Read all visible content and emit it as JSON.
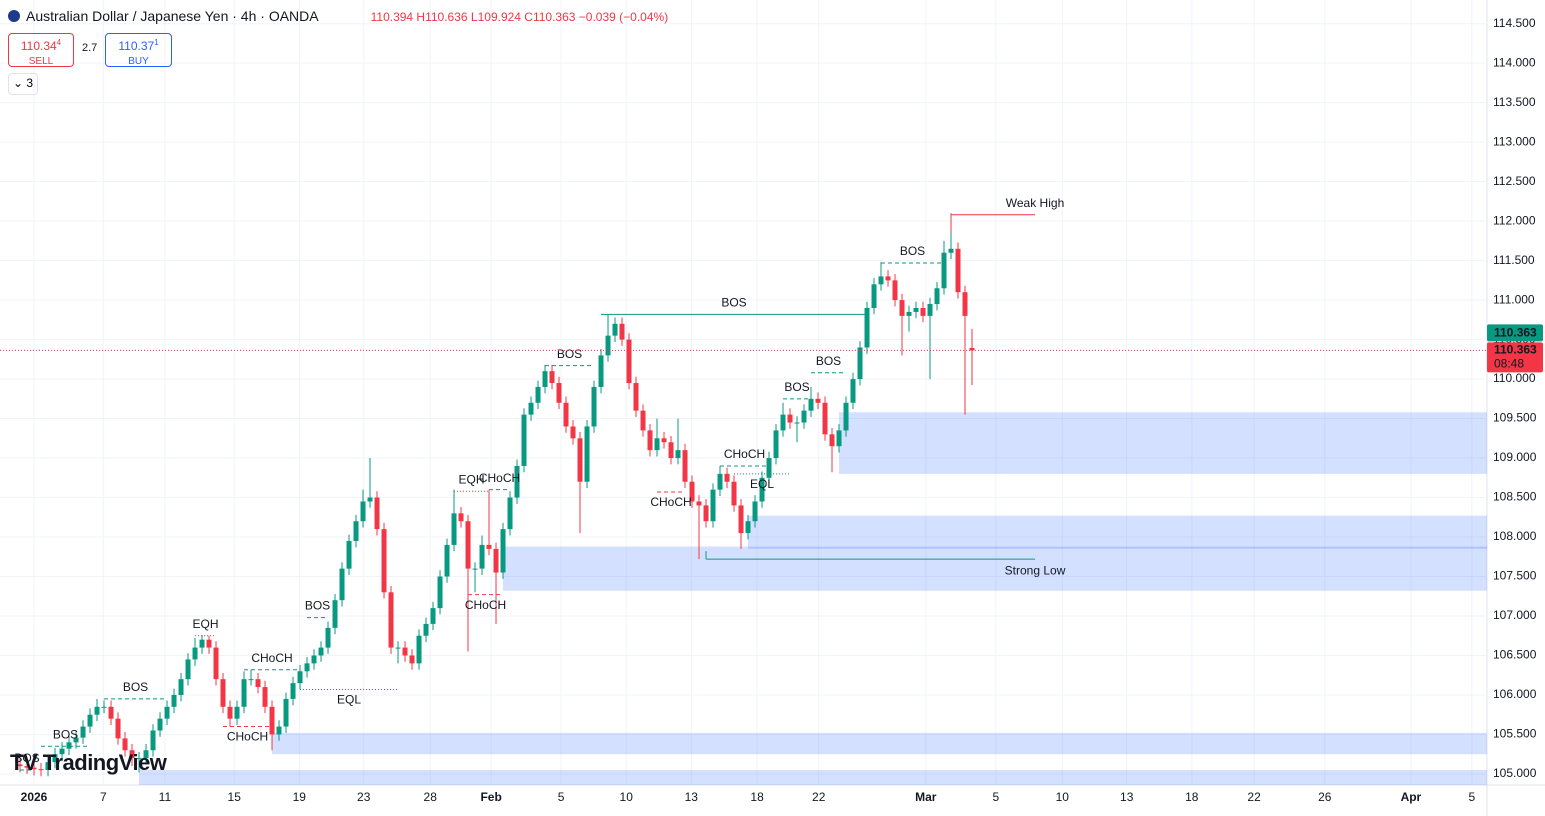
{
  "header": {
    "symbol": "Australian Dollar / Japanese Yen · 4h · OANDA",
    "ohlc": "110.394 H110.636 L109.924 C110.363 −0.039 (−0.04%)",
    "sell": {
      "price": "110.34",
      "pip": "4",
      "label": "SELL"
    },
    "spread": "2.7",
    "buy": {
      "price": "110.37",
      "pip": "1",
      "label": "BUY"
    },
    "indicators": "3",
    "logo": "TradingView"
  },
  "chart_data": {
    "type": "candlestick",
    "up_color": "#089981",
    "down_color": "#f23645",
    "grid": true,
    "ylim": [
      104.86,
      114.8
    ],
    "yticks": [
      {
        "value": 105,
        "label": "105.000"
      },
      {
        "value": 105.5,
        "label": "105.500"
      },
      {
        "value": 106,
        "label": "106.000"
      },
      {
        "value": 106.5,
        "label": "106.500"
      },
      {
        "value": 107,
        "label": "107.000"
      },
      {
        "value": 107.5,
        "label": "107.500"
      },
      {
        "value": 108,
        "label": "108.000"
      },
      {
        "value": 108.5,
        "label": "108.500"
      },
      {
        "value": 109,
        "label": "109.000"
      },
      {
        "value": 109.5,
        "label": "109.500"
      },
      {
        "value": 110,
        "label": "110.000"
      },
      {
        "value": 110.5,
        "label": "110.500"
      },
      {
        "value": 111,
        "label": "111.000"
      },
      {
        "value": 111.5,
        "label": "111.500"
      },
      {
        "value": 112,
        "label": "112.000"
      },
      {
        "value": 112.5,
        "label": "112.500"
      },
      {
        "value": 113,
        "label": "113.000"
      },
      {
        "value": 113.5,
        "label": "113.500"
      },
      {
        "value": 114,
        "label": "114.000"
      },
      {
        "value": 114.5,
        "label": "114.500"
      }
    ],
    "xlim": [
      -2.86,
      209.57
    ],
    "xticks": [
      {
        "value": 2,
        "label": "2026"
      },
      {
        "value": 11.9,
        "label": "7"
      },
      {
        "value": 20.7,
        "label": "11"
      },
      {
        "value": 30.6,
        "label": "15"
      },
      {
        "value": 39.9,
        "label": "19"
      },
      {
        "value": 49.1,
        "label": "23"
      },
      {
        "value": 58.6,
        "label": "28"
      },
      {
        "value": 67.3,
        "label": "Feb"
      },
      {
        "value": 77.3,
        "label": "5"
      },
      {
        "value": 86.6,
        "label": "10"
      },
      {
        "value": 95.9,
        "label": "13"
      },
      {
        "value": 105.3,
        "label": "18"
      },
      {
        "value": 114.1,
        "label": "22"
      },
      {
        "value": 129.4,
        "label": "Mar"
      },
      {
        "value": 139.4,
        "label": "5"
      },
      {
        "value": 148.9,
        "label": "10"
      },
      {
        "value": 158.1,
        "label": "13"
      },
      {
        "value": 167.4,
        "label": "18"
      },
      {
        "value": 176.3,
        "label": "22"
      },
      {
        "value": 186.4,
        "label": "26"
      },
      {
        "value": 198.7,
        "label": "Apr"
      },
      {
        "value": 207.4,
        "label": "5"
      }
    ],
    "open": [
      105.12,
      105.1,
      105.08,
      105.06,
      105.05,
      105.15,
      105.25,
      105.32,
      105.4,
      105.46,
      105.6,
      105.75,
      105.85,
      105.85,
      105.7,
      105.45,
      105.3,
      105.2,
      105.2,
      105.3,
      105.55,
      105.7,
      105.85,
      106.0,
      106.2,
      106.45,
      106.6,
      106.7,
      106.6,
      106.2,
      105.85,
      105.7,
      105.85,
      106.2,
      106.2,
      106.1,
      105.85,
      105.5,
      105.6,
      105.95,
      106.15,
      106.3,
      106.4,
      106.5,
      106.6,
      106.85,
      107.2,
      107.6,
      107.95,
      108.2,
      108.45,
      108.5,
      108.1,
      107.3,
      106.6,
      106.6,
      106.5,
      106.4,
      106.75,
      106.9,
      107.1,
      107.5,
      107.9,
      108.3,
      108.2,
      107.6,
      107.6,
      107.9,
      107.85,
      107.55,
      108.1,
      108.5,
      108.9,
      109.55,
      109.7,
      109.9,
      110.1,
      109.95,
      109.7,
      109.4,
      109.25,
      108.7,
      109.4,
      109.9,
      110.3,
      110.55,
      110.7,
      110.5,
      109.95,
      109.6,
      109.35,
      109.1,
      109.25,
      109.2,
      109.0,
      109.1,
      108.7,
      108.45,
      108.4,
      108.2,
      108.6,
      108.8,
      108.7,
      108.4,
      108.05,
      108.2,
      108.45,
      108.75,
      109.0,
      109.35,
      109.55,
      109.45,
      109.45,
      109.6,
      109.75,
      109.7,
      109.3,
      109.15,
      109.35,
      109.7,
      110.0,
      110.4,
      110.9,
      111.2,
      111.3,
      111.25,
      111.0,
      110.8,
      110.85,
      110.9,
      110.8,
      110.95,
      111.15,
      111.6,
      111.65,
      111.1,
      110.394
    ],
    "high": [
      105.2,
      105.18,
      105.16,
      105.14,
      105.23,
      105.33,
      105.4,
      105.48,
      105.54,
      105.68,
      105.83,
      105.95,
      105.93,
      105.93,
      105.78,
      105.53,
      105.38,
      105.28,
      105.38,
      105.63,
      105.78,
      105.93,
      106.08,
      106.28,
      106.53,
      106.72,
      106.76,
      106.75,
      106.68,
      106.28,
      105.93,
      105.93,
      106.3,
      106.32,
      106.28,
      106.18,
      105.93,
      105.68,
      106.03,
      106.23,
      106.38,
      106.48,
      106.58,
      106.68,
      106.93,
      107.28,
      107.68,
      108.03,
      108.28,
      108.6,
      109.0,
      108.58,
      108.18,
      107.38,
      106.68,
      106.68,
      106.58,
      106.83,
      106.98,
      107.18,
      107.58,
      107.98,
      108.6,
      108.38,
      108.28,
      107.68,
      108.02,
      108.6,
      107.93,
      108.18,
      108.58,
      108.98,
      109.63,
      109.78,
      109.98,
      110.18,
      110.18,
      110.03,
      109.78,
      109.48,
      109.33,
      109.48,
      109.98,
      110.38,
      110.82,
      110.78,
      110.78,
      110.58,
      110.03,
      109.68,
      109.43,
      109.5,
      109.33,
      109.28,
      109.5,
      109.18,
      108.78,
      108.53,
      108.48,
      108.68,
      108.9,
      108.88,
      108.78,
      108.48,
      108.28,
      108.53,
      108.83,
      109.08,
      109.43,
      109.7,
      109.63,
      109.53,
      109.68,
      109.9,
      109.83,
      109.78,
      109.38,
      109.43,
      109.78,
      110.08,
      110.48,
      110.98,
      111.28,
      111.48,
      111.38,
      111.33,
      111.08,
      110.93,
      110.98,
      110.98,
      111.03,
      111.23,
      111.75,
      112.1,
      111.73,
      111.18,
      110.636
    ],
    "low": [
      105.02,
      105.0,
      104.98,
      104.97,
      104.97,
      105.07,
      105.17,
      105.24,
      105.32,
      105.38,
      105.52,
      105.67,
      105.77,
      105.62,
      105.37,
      105.22,
      105.1,
      105.02,
      105.12,
      105.22,
      105.47,
      105.62,
      105.77,
      105.92,
      106.12,
      106.37,
      106.52,
      106.52,
      106.12,
      105.77,
      105.6,
      105.62,
      105.77,
      106.12,
      106.02,
      105.77,
      105.3,
      105.42,
      105.52,
      105.87,
      106.07,
      106.22,
      106.32,
      106.42,
      106.52,
      106.77,
      107.12,
      107.52,
      107.87,
      108.12,
      108.37,
      108.02,
      107.22,
      106.52,
      106.4,
      106.42,
      106.32,
      106.32,
      106.67,
      106.82,
      107.02,
      107.42,
      107.82,
      108.12,
      106.55,
      107.3,
      107.52,
      107.77,
      106.9,
      107.47,
      108.02,
      108.42,
      108.82,
      109.47,
      109.62,
      109.82,
      109.87,
      109.62,
      109.32,
      109.17,
      108.05,
      108.62,
      109.32,
      109.82,
      110.22,
      110.47,
      110.42,
      109.87,
      109.52,
      109.27,
      109.02,
      109.02,
      109.12,
      108.92,
      108.92,
      108.62,
      108.37,
      107.72,
      108.12,
      108.12,
      108.52,
      108.62,
      108.32,
      107.85,
      107.97,
      108.12,
      108.37,
      108.67,
      108.92,
      109.27,
      109.37,
      109.2,
      109.37,
      109.52,
      109.62,
      109.22,
      108.82,
      109.07,
      109.27,
      109.62,
      109.92,
      110.32,
      110.82,
      111.12,
      111.17,
      110.92,
      110.3,
      110.6,
      110.77,
      110.72,
      110.0,
      110.87,
      111.07,
      111.52,
      111.02,
      109.55,
      109.924
    ],
    "close": [
      105.1,
      105.08,
      105.06,
      105.05,
      105.15,
      105.25,
      105.32,
      105.4,
      105.46,
      105.6,
      105.75,
      105.85,
      105.85,
      105.7,
      105.45,
      105.3,
      105.2,
      105.2,
      105.3,
      105.55,
      105.7,
      105.85,
      106.0,
      106.2,
      106.45,
      106.6,
      106.7,
      106.6,
      106.2,
      105.85,
      105.7,
      105.85,
      106.2,
      106.2,
      106.1,
      105.85,
      105.5,
      105.6,
      105.95,
      106.15,
      106.3,
      106.4,
      106.5,
      106.6,
      106.85,
      107.2,
      107.6,
      107.95,
      108.2,
      108.45,
      108.5,
      108.1,
      107.3,
      106.6,
      106.6,
      106.5,
      106.4,
      106.75,
      106.9,
      107.1,
      107.5,
      107.9,
      108.3,
      108.2,
      107.6,
      107.6,
      107.9,
      107.85,
      107.55,
      108.1,
      108.5,
      108.9,
      109.55,
      109.7,
      109.9,
      110.1,
      109.95,
      109.7,
      109.4,
      109.25,
      108.7,
      109.4,
      109.9,
      110.3,
      110.55,
      110.7,
      110.5,
      109.95,
      109.6,
      109.35,
      109.1,
      109.25,
      109.2,
      109.0,
      109.1,
      108.7,
      108.45,
      108.4,
      108.2,
      108.6,
      108.8,
      108.7,
      108.4,
      108.05,
      108.2,
      108.45,
      108.75,
      109.0,
      109.35,
      109.55,
      109.45,
      109.45,
      109.6,
      109.75,
      109.7,
      109.3,
      109.15,
      109.35,
      109.7,
      110.0,
      110.4,
      110.9,
      111.2,
      111.3,
      111.25,
      111.0,
      110.8,
      110.85,
      110.9,
      110.8,
      110.95,
      111.15,
      111.6,
      111.65,
      111.1,
      110.8,
      110.363
    ],
    "zone_color": "#2962ff",
    "zones": [
      {
        "top": 109.58,
        "bottom": 108.8,
        "from": 117
      },
      {
        "top": 108.27,
        "bottom": 107.85,
        "from": 104
      },
      {
        "top": 107.88,
        "bottom": 107.32,
        "from": 69
      },
      {
        "top": 105.52,
        "bottom": 105.25,
        "from": 36
      },
      {
        "top": 105.05,
        "bottom": 104.86,
        "from": 17
      }
    ],
    "structure": [
      {
        "label": "BOS",
        "level": 105.05,
        "from": 0,
        "to": 2,
        "color": "#089981",
        "style": "dashed",
        "side": "above"
      },
      {
        "label": "BOS",
        "level": 105.35,
        "from": 3,
        "to": 10,
        "color": "#089981",
        "style": "dashed",
        "side": "above"
      },
      {
        "label": "BOS",
        "level": 105.95,
        "from": 12,
        "to": 21,
        "color": "#089981",
        "style": "dashed",
        "side": "above"
      },
      {
        "label": "EQH",
        "level": 106.75,
        "from": 25,
        "to": 28,
        "color": "#f23645",
        "style": "dotted",
        "side": "above"
      },
      {
        "label": "CHoCH",
        "level": 105.6,
        "from": 29,
        "to": 36,
        "color": "#f23645",
        "style": "dashed",
        "side": "below"
      },
      {
        "label": "CHoCH",
        "level": 106.32,
        "from": 32,
        "to": 40,
        "color": "#089981",
        "style": "dashed",
        "side": "above"
      },
      {
        "label": "EQL",
        "level": 106.07,
        "from": 40,
        "to": 54,
        "color": "#089981",
        "style": "dotted",
        "side": "below"
      },
      {
        "label": "BOS",
        "level": 106.98,
        "from": 41,
        "to": 44,
        "color": "#089981",
        "style": "dashed",
        "side": "above"
      },
      {
        "label": "EQH",
        "level": 108.58,
        "from": 62,
        "to": 67,
        "color": "#f23645",
        "style": "dotted",
        "side": "above"
      },
      {
        "label": "CHoCH",
        "level": 108.6,
        "from": 67,
        "to": 70,
        "color": "#089981",
        "style": "dashed",
        "side": "above"
      },
      {
        "label": "CHoCH",
        "level": 107.27,
        "from": 64,
        "to": 69,
        "color": "#f23645",
        "style": "dashed",
        "side": "below"
      },
      {
        "label": "BOS",
        "level": 110.17,
        "from": 75,
        "to": 82,
        "color": "#089981",
        "style": "dashed",
        "side": "above"
      },
      {
        "label": "BOS",
        "level": 110.82,
        "from": 83,
        "to": 121,
        "color": "#089981",
        "style": "solid",
        "side": "above"
      },
      {
        "label": "CHoCH",
        "level": 108.57,
        "from": 91,
        "to": 95,
        "color": "#f23645",
        "style": "dashed",
        "side": "below"
      },
      {
        "label": "CHoCH",
        "level": 108.9,
        "from": 100,
        "to": 107,
        "color": "#089981",
        "style": "dashed",
        "side": "above"
      },
      {
        "label": "EQL",
        "level": 108.8,
        "from": 102,
        "to": 110,
        "color": "#089981",
        "style": "dotted",
        "side": "below"
      },
      {
        "label": "BOS",
        "level": 109.75,
        "from": 109,
        "to": 113,
        "color": "#089981",
        "style": "dashed",
        "side": "above"
      },
      {
        "label": "BOS",
        "level": 110.08,
        "from": 113,
        "to": 118,
        "color": "#089981",
        "style": "dashed",
        "side": "above"
      },
      {
        "label": "BOS",
        "level": 111.47,
        "from": 123,
        "to": 132,
        "color": "#089981",
        "style": "dashed",
        "side": "above"
      },
      {
        "label": "Weak High",
        "level": 112.08,
        "from": 133,
        "to": 145,
        "color": "#f23645",
        "style": "solid",
        "side": "end-above"
      },
      {
        "label": "Strong Low",
        "level": 107.72,
        "from": 98,
        "to": 145,
        "color": "#089981",
        "style": "solid",
        "side": "end-below"
      }
    ],
    "price_tag": {
      "value": 110.363,
      "color": "#089981"
    },
    "last_price": {
      "value": 110.363,
      "countdown": "08:48",
      "color": "#f23645"
    }
  }
}
